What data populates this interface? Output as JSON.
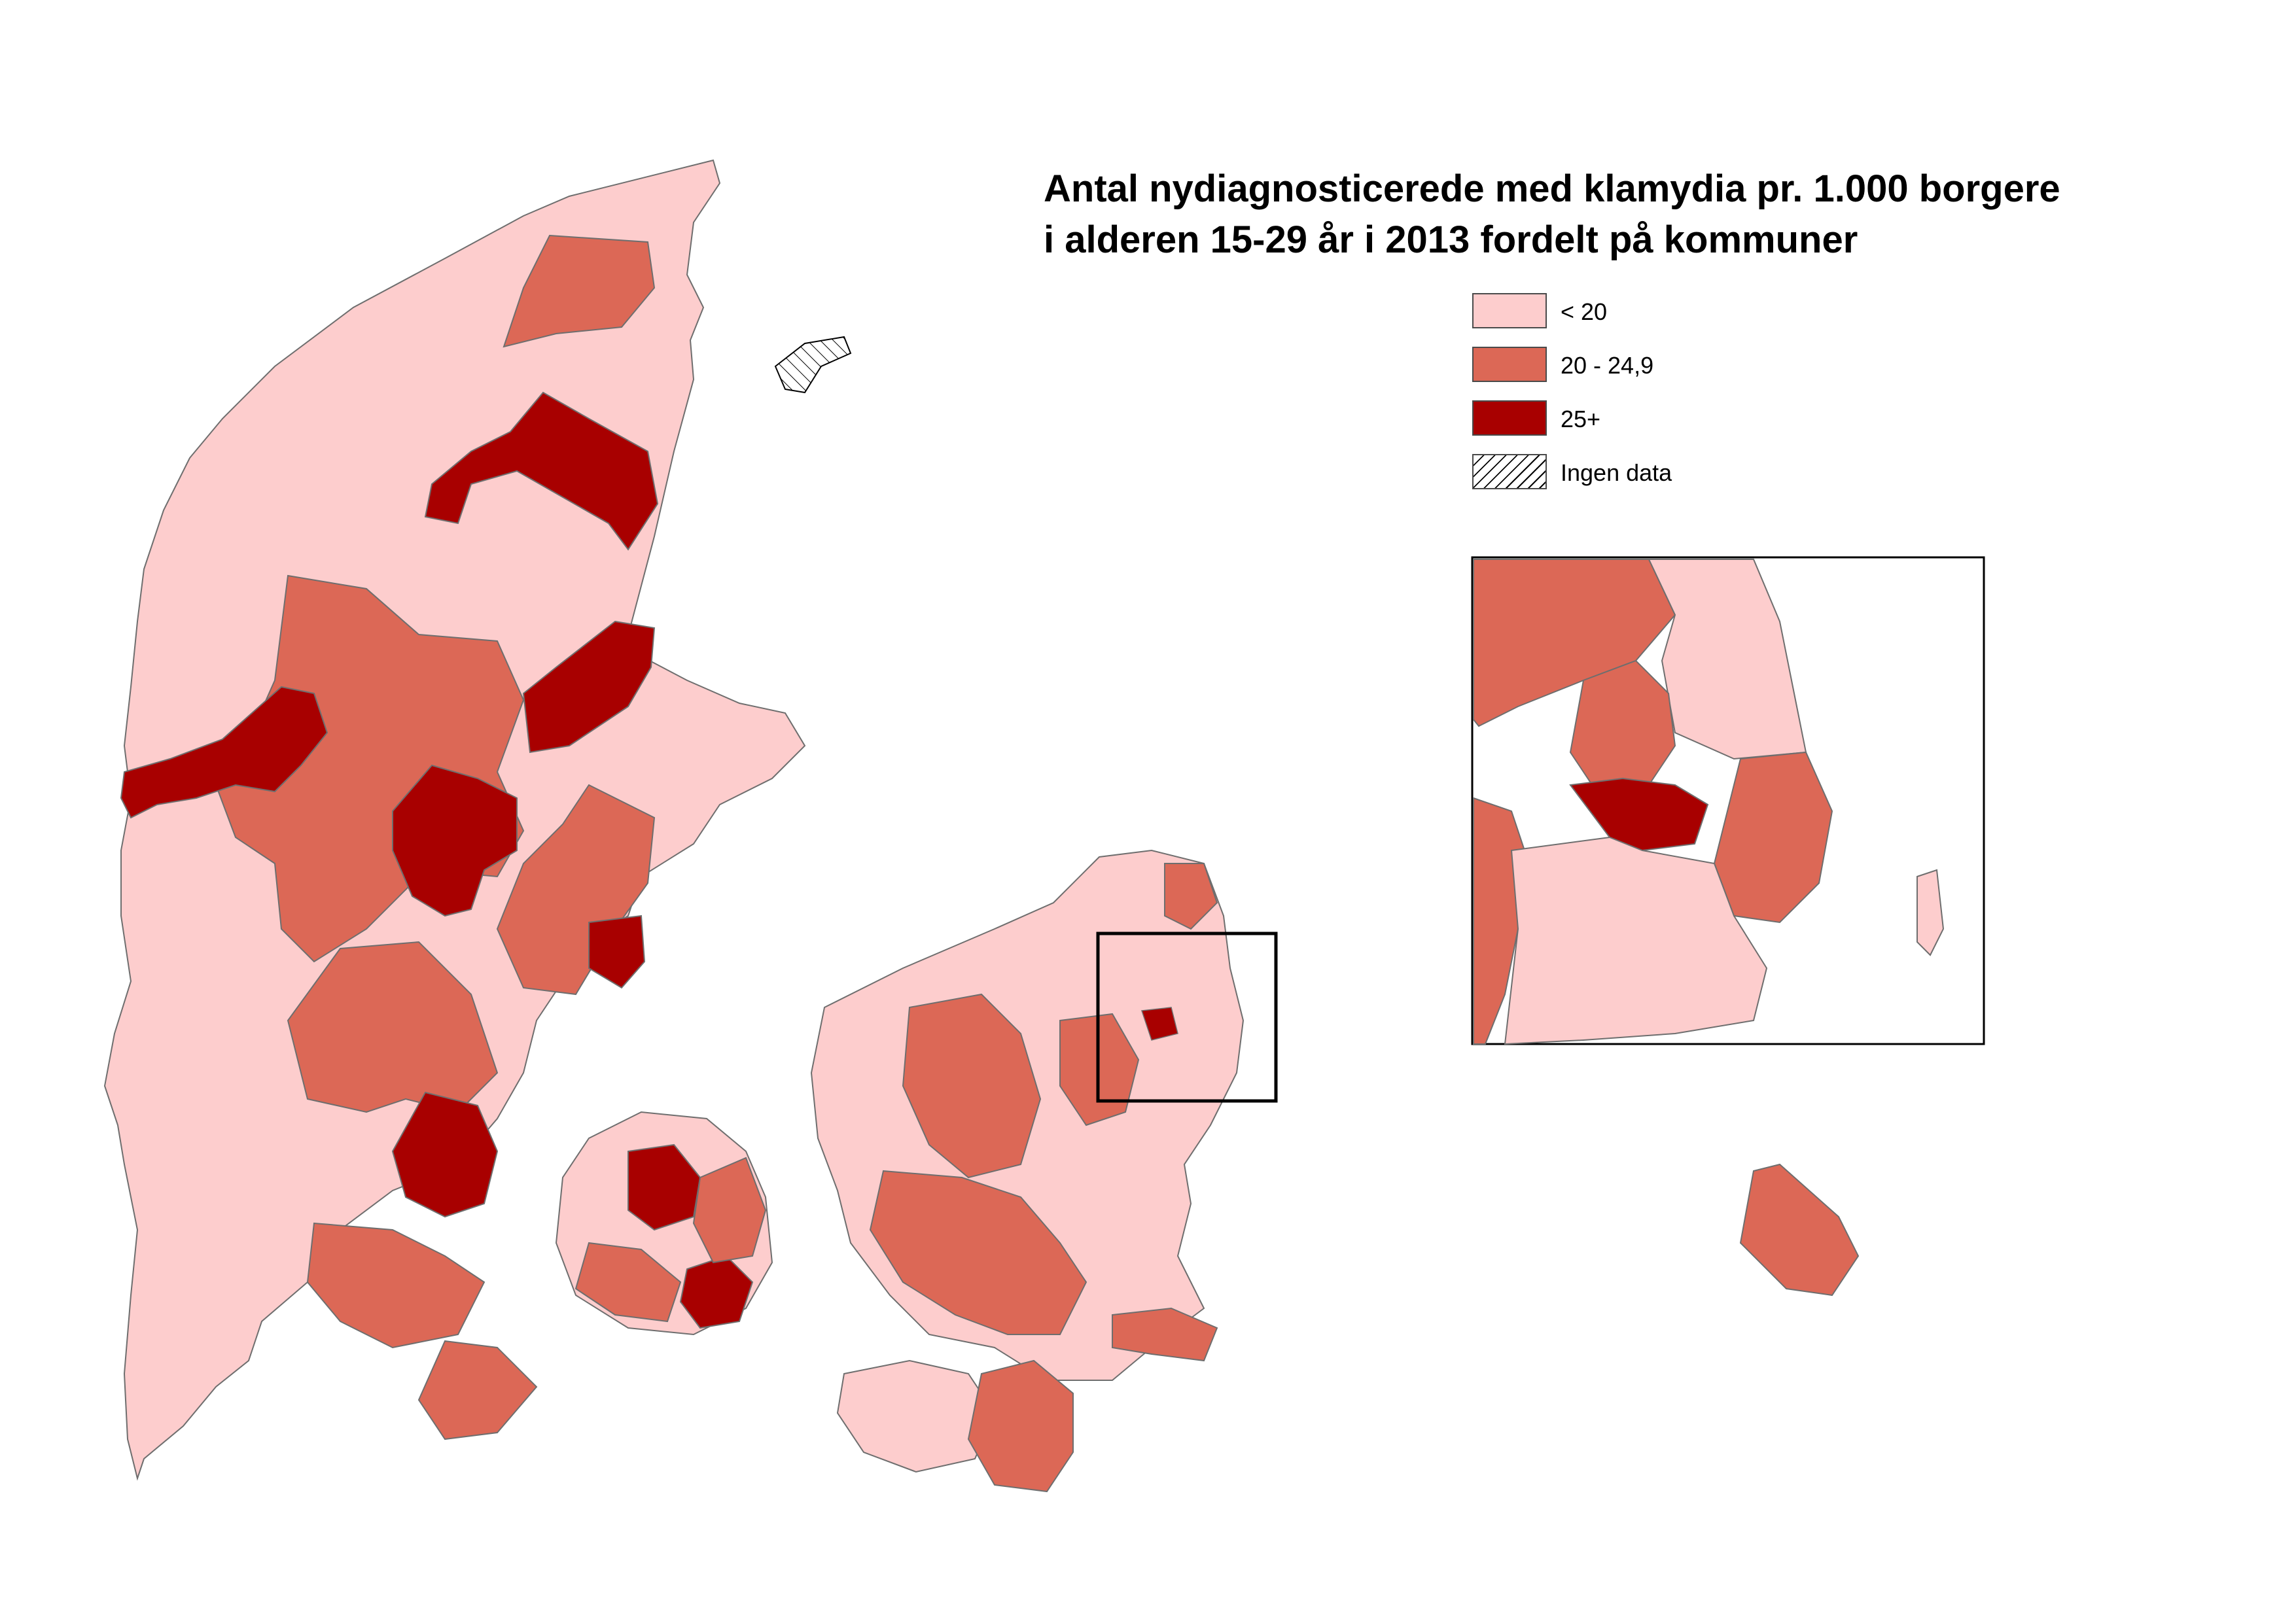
{
  "title_lines": [
    "Antal nydiagnosticerede med klamydia pr. 1.000 borgere",
    "i alderen 15-29 år i 2013 fordelt på kommuner"
  ],
  "legend": [
    {
      "label": "< 20",
      "color": "#fdcdcd",
      "pattern": "solid"
    },
    {
      "label": "20 - 24,9",
      "color": "#dc6856",
      "pattern": "solid"
    },
    {
      "label": "25+",
      "color": "#a80000",
      "pattern": "solid"
    },
    {
      "label": "Ingen data",
      "color": "#ffffff",
      "pattern": "hatched"
    }
  ],
  "colors": {
    "low": "#fdcdcd",
    "mid": "#dc6856",
    "high": "#a80000",
    "border": "#6e6e6e",
    "frame": "#000000"
  }
}
